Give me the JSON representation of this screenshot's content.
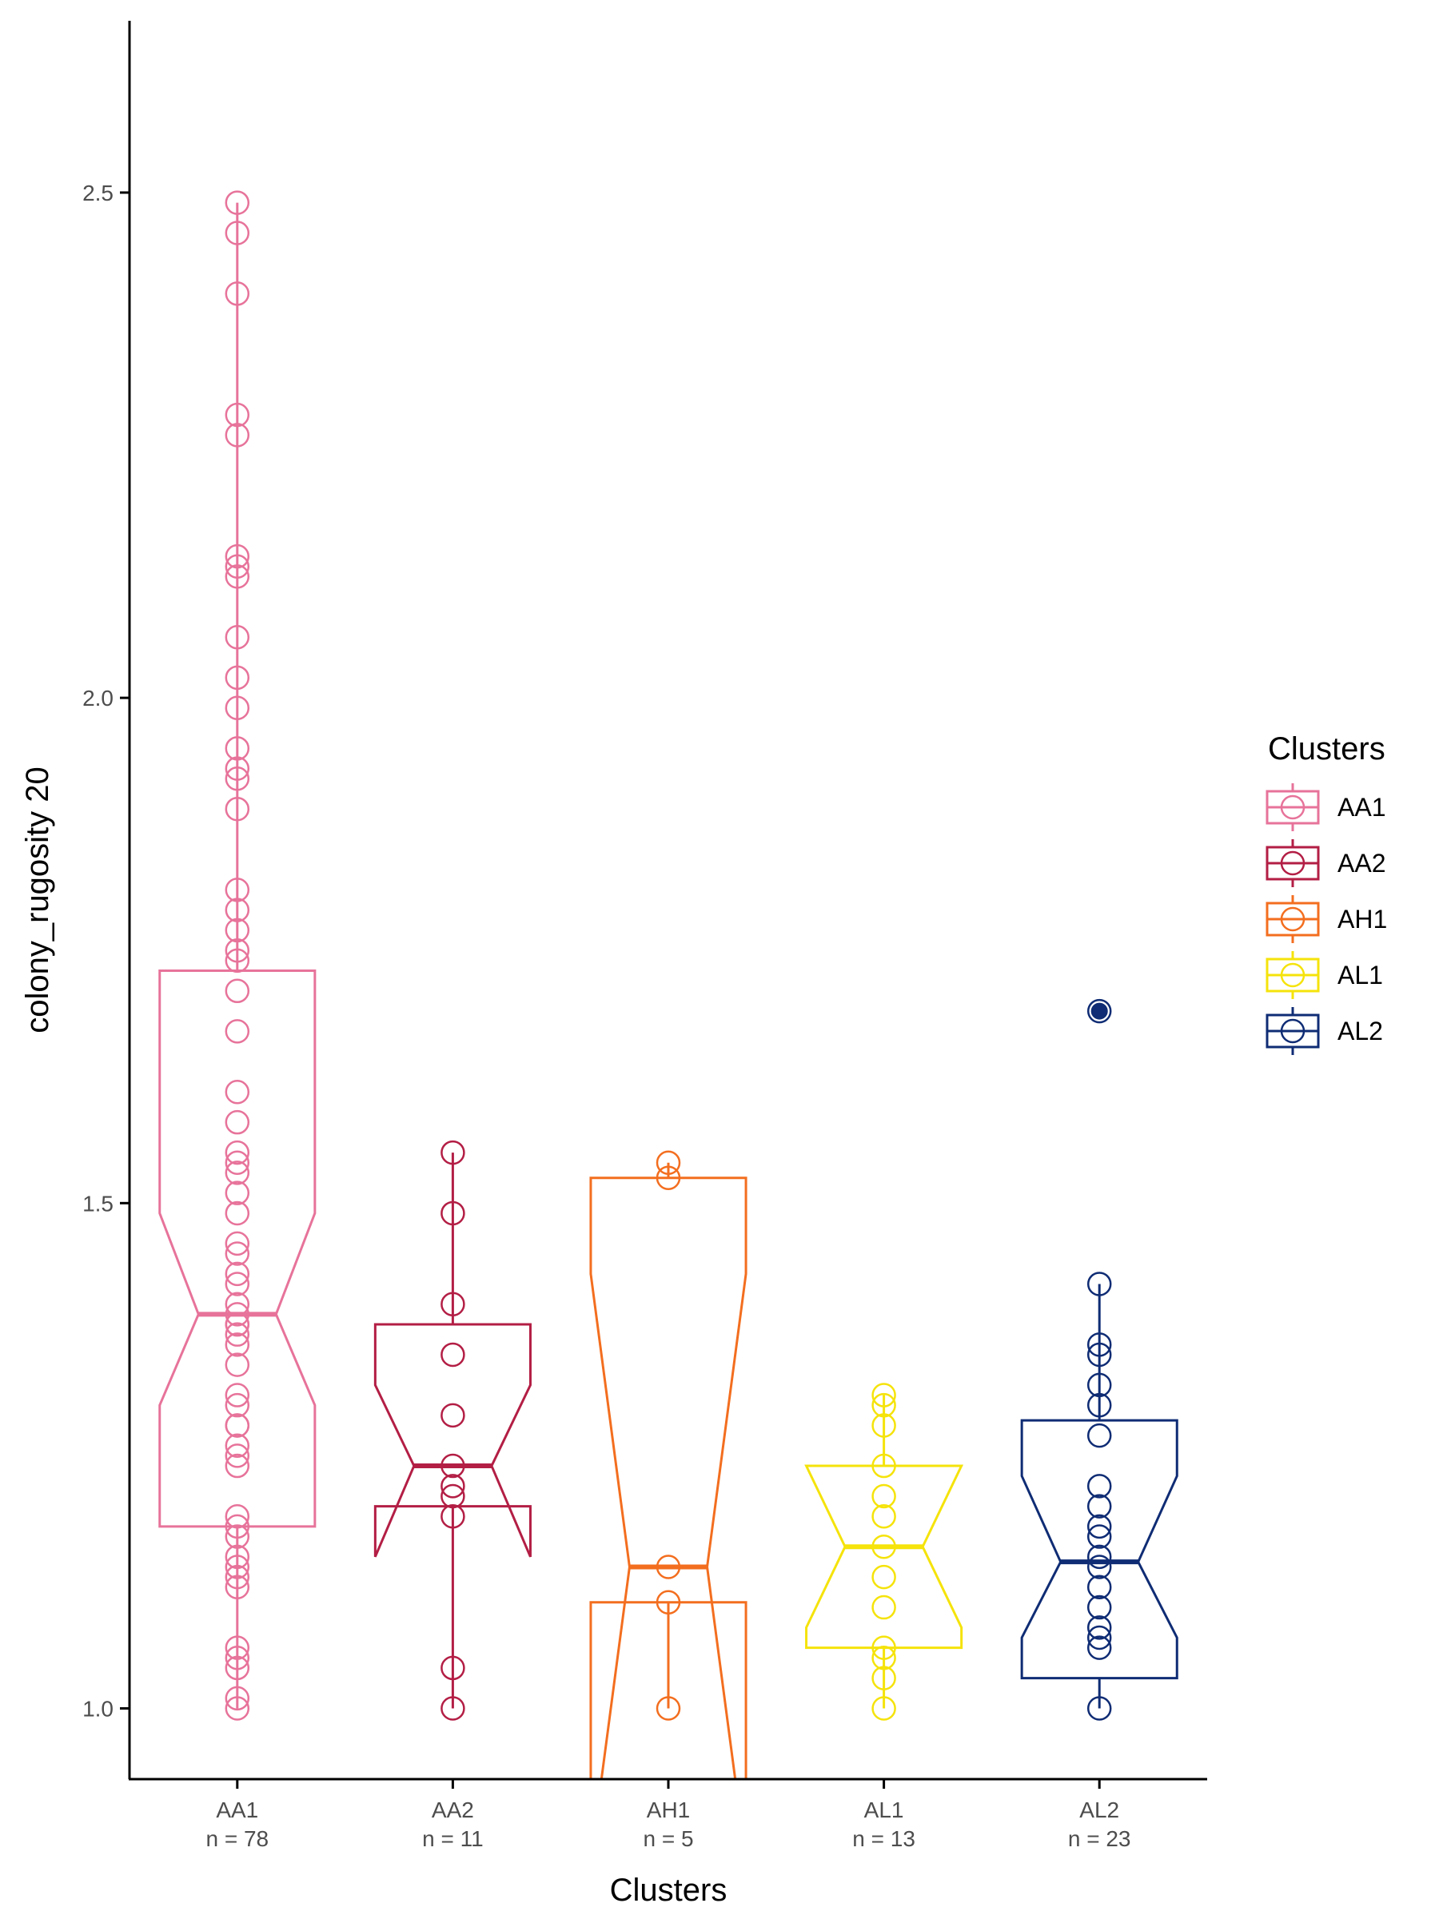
{
  "chart_data": {
    "type": "box",
    "xlabel": "Clusters",
    "ylabel": "colony_rugosity 20",
    "ylim": [
      0.93,
      2.67
    ],
    "yticks": [
      1.0,
      1.5,
      2.0,
      2.5
    ],
    "ytick_labels": [
      "1.0",
      "1.5",
      "2.0",
      "2.5"
    ],
    "grid": false,
    "legend": {
      "title": "Clusters",
      "position": "right"
    },
    "series": [
      {
        "name": "AA1",
        "label": "n = 78",
        "color": "#E7739A",
        "q1": 1.18,
        "median": 1.39,
        "q3": 1.73,
        "notch_low": 1.3,
        "notch_high": 1.49,
        "whisker_low": 1.0,
        "whisker_high": 2.49,
        "outliers": [],
        "points": [
          2.49,
          2.46,
          2.4,
          2.28,
          2.26,
          2.14,
          2.13,
          2.12,
          2.06,
          2.02,
          1.99,
          1.95,
          1.93,
          1.92,
          1.89,
          1.81,
          1.79,
          1.77,
          1.75,
          1.74,
          1.71,
          1.67,
          1.61,
          1.58,
          1.55,
          1.54,
          1.53,
          1.51,
          1.49,
          1.46,
          1.45,
          1.43,
          1.42,
          1.4,
          1.39,
          1.38,
          1.38,
          1.37,
          1.36,
          1.34,
          1.31,
          1.3,
          1.28,
          1.28,
          1.26,
          1.25,
          1.24,
          1.19,
          1.18,
          1.17,
          1.15,
          1.14,
          1.13,
          1.12,
          1.06,
          1.05,
          1.04,
          1.01,
          1.0
        ]
      },
      {
        "name": "AA2",
        "label": "n = 11",
        "color": "#B31E45",
        "q1": 1.2,
        "median": 1.24,
        "q3": 1.38,
        "notch_low": 1.15,
        "notch_high": 1.32,
        "whisker_low": 1.0,
        "whisker_high": 1.55,
        "outliers": [],
        "points": [
          1.55,
          1.49,
          1.4,
          1.35,
          1.29,
          1.24,
          1.22,
          1.21,
          1.19,
          1.04,
          1.0
        ]
      },
      {
        "name": "AH1",
        "label": "n = 5",
        "color": "#F36E1F",
        "q1": 1.105,
        "median": 1.14,
        "q3": 1.525,
        "notch_low": 0.85,
        "notch_high": 1.43,
        "whisker_low": 1.0,
        "whisker_high": 1.54,
        "outliers": [],
        "points": [
          1.54,
          1.525,
          1.14,
          1.105,
          1.0
        ]
      },
      {
        "name": "AL1",
        "label": "n = 13",
        "color": "#F5E30B",
        "q1": 1.06,
        "median": 1.16,
        "q3": 1.24,
        "notch_low": 1.08,
        "notch_high": 1.24,
        "whisker_low": 1.0,
        "whisker_high": 1.31,
        "outliers": [],
        "points": [
          1.31,
          1.3,
          1.28,
          1.24,
          1.21,
          1.19,
          1.16,
          1.13,
          1.1,
          1.06,
          1.05,
          1.03,
          1.0
        ]
      },
      {
        "name": "AL2",
        "label": "n = 23",
        "color": "#0F2C74",
        "q1": 1.03,
        "median": 1.145,
        "q3": 1.285,
        "notch_low": 1.07,
        "notch_high": 1.23,
        "whisker_low": 1.0,
        "whisker_high": 1.42,
        "outliers": [
          1.69
        ],
        "points": [
          1.69,
          1.42,
          1.36,
          1.35,
          1.32,
          1.3,
          1.27,
          1.22,
          1.2,
          1.18,
          1.17,
          1.15,
          1.14,
          1.12,
          1.1,
          1.08,
          1.07,
          1.06,
          1.0
        ]
      }
    ]
  }
}
